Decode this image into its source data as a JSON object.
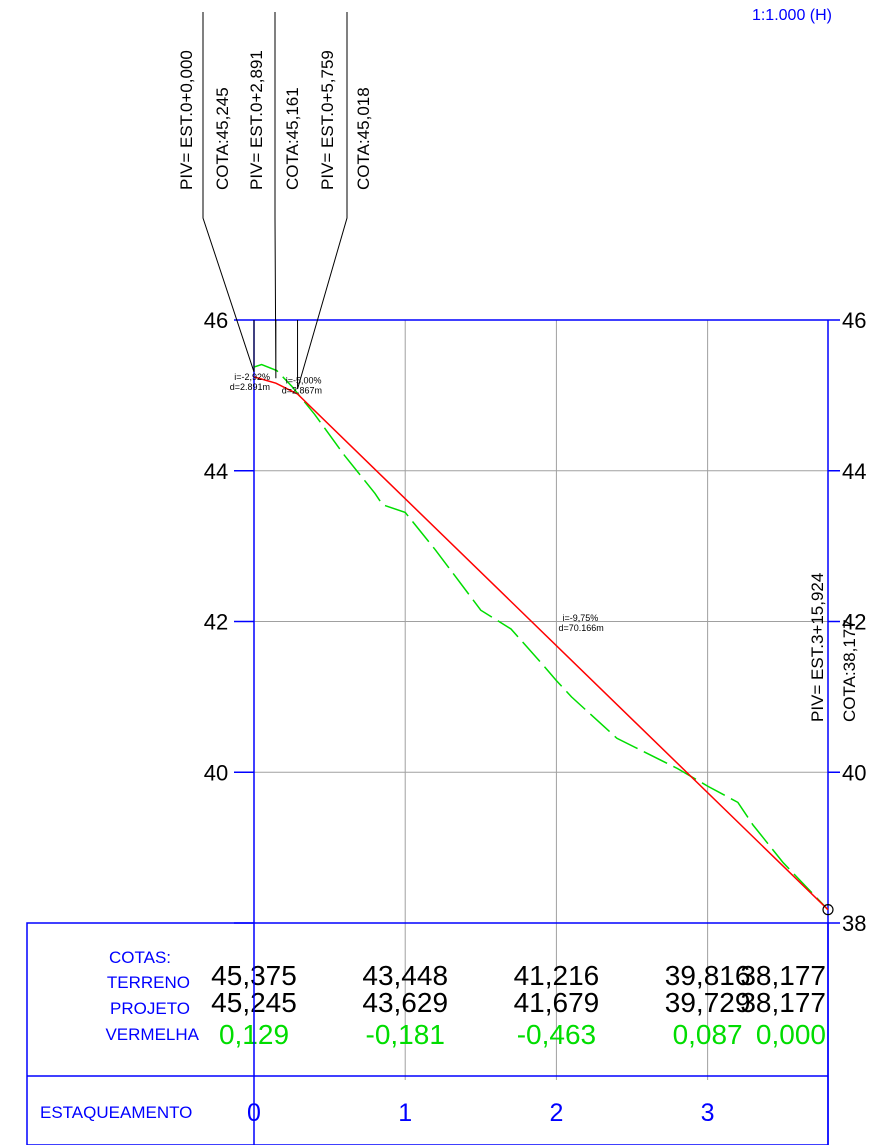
{
  "scale_label": "1:1.000 (H)",
  "chart_data": {
    "type": "line",
    "title": "",
    "x_unit": "m",
    "xlim": [
      0,
      75.924
    ],
    "ylim": [
      38,
      46
    ],
    "y_ticks": [
      46,
      44,
      42,
      40,
      38
    ],
    "y_tick_labels": [
      "46",
      "44",
      "42",
      "40",
      "38"
    ],
    "station_labels": [
      "0",
      "1",
      "2",
      "3"
    ],
    "station_positions_m": [
      0,
      20,
      40,
      60
    ],
    "grid": true,
    "series": [
      {
        "role": "terrain",
        "color": "#00dd00",
        "dashed": true,
        "x": [
          0,
          1,
          3,
          5,
          8,
          12,
          16,
          17,
          20,
          24,
          30,
          34,
          38,
          40,
          42,
          48,
          56,
          60,
          64,
          66,
          70,
          75.924
        ],
        "y": [
          45.375,
          45.41,
          45.33,
          45.12,
          44.75,
          44.2,
          43.7,
          43.55,
          43.448,
          42.95,
          42.15,
          41.9,
          41.45,
          41.216,
          41.0,
          40.45,
          40.05,
          39.816,
          39.6,
          39.3,
          38.8,
          38.177
        ]
      },
      {
        "role": "project",
        "color": "#ff0000",
        "dashed": false,
        "x": [
          0,
          2.891,
          5.759,
          75.924
        ],
        "y": [
          45.245,
          45.161,
          45.018,
          38.177
        ]
      }
    ],
    "pivs": [
      {
        "station": "PIV= EST.0+0,000",
        "cota": "COTA:45,245",
        "x": 0,
        "y": 45.245
      },
      {
        "station": "PIV= EST.0+2,891",
        "cota": "COTA:45,161",
        "x": 2.891,
        "y": 45.161
      },
      {
        "station": "PIV= EST.0+5,759",
        "cota": "COTA:45,018",
        "x": 5.759,
        "y": 45.018
      },
      {
        "station": "PIV= EST.3+15,924",
        "cota": "COTA:38,177",
        "x": 75.924,
        "y": 38.177
      }
    ],
    "grade_annotations": [
      {
        "slope": "i=-2,92%",
        "length": "d=2.891m",
        "x": 0,
        "y": 45.1
      },
      {
        "slope": "i=-5,00%",
        "length": "d=2.867m",
        "x": 4.2,
        "y": 45.05
      },
      {
        "slope": "i=-9,75%",
        "length": "d=70.166m",
        "x": 40.8,
        "y": 41.9
      }
    ],
    "table": {
      "header_label": "COTAS:",
      "terrain_label": "TERRENO",
      "project_label": "PROJETO",
      "diff_label": "VERMELHA",
      "station_row_label": "ESTAQUEAMENTO",
      "columns": [
        {
          "x": 0,
          "terreno": "45,375",
          "projeto": "45,245",
          "vermelha": "0,129"
        },
        {
          "x": 20,
          "terreno": "43,448",
          "projeto": "43,629",
          "vermelha": "-0,181"
        },
        {
          "x": 40,
          "terreno": "41,216",
          "projeto": "41,679",
          "vermelha": "-0,463"
        },
        {
          "x": 60,
          "terreno": "39,816",
          "projeto": "39,729",
          "vermelha": "0,087"
        },
        {
          "x": 75.924,
          "terreno": "38,177",
          "projeto": "38,177",
          "vermelha": "0,000"
        }
      ]
    }
  }
}
